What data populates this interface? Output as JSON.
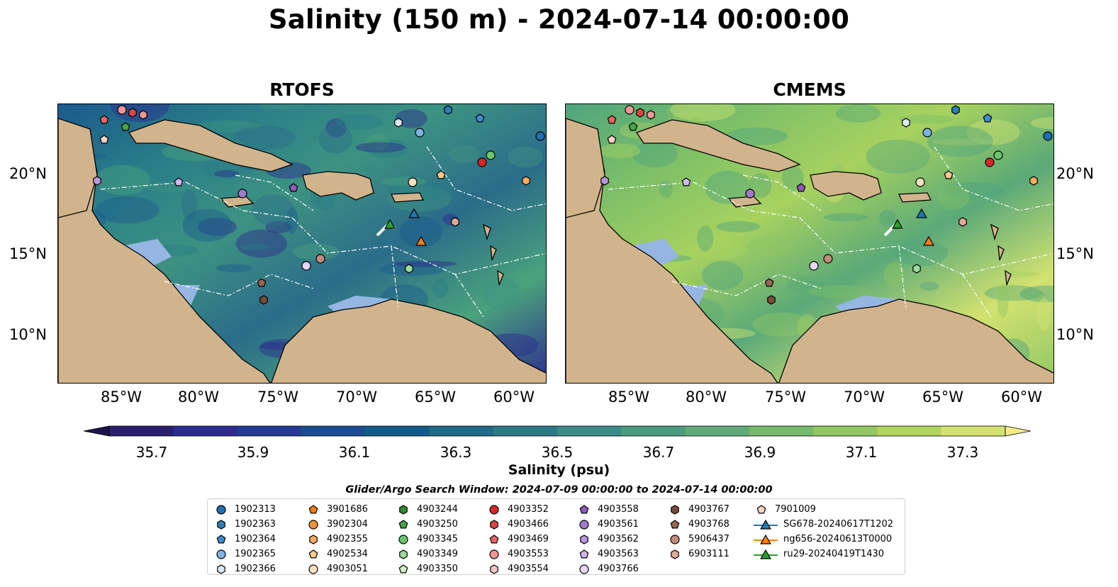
{
  "title": "Salinity (150 m) - 2024-07-14 00:00:00",
  "panels": [
    {
      "name": "RTOFS"
    },
    {
      "name": "CMEMS"
    }
  ],
  "axes": {
    "x_ticks": [
      "85°W",
      "80°W",
      "75°W",
      "70°W",
      "65°W",
      "60°W"
    ],
    "y_ticks": [
      "20°N",
      "15°N",
      "10°N"
    ]
  },
  "colorbar": {
    "labels": [
      "35.7",
      "35.9",
      "36.1",
      "36.3",
      "36.5",
      "36.7",
      "36.9",
      "37.1",
      "37.3"
    ],
    "colors": [
      "#2a1f6e",
      "#2d2a8f",
      "#233b95",
      "#1a4c91",
      "#155b8a",
      "#1f6a86",
      "#2d7a86",
      "#3a8a85",
      "#4c9a80",
      "#5faa78",
      "#76b96c",
      "#92c761",
      "#b0d45d",
      "#d3e270"
    ],
    "title": "Salinity (psu)"
  },
  "search_window": "Glider/Argo Search Window: 2024-07-09 00:00:00 to 2024-07-14 00:00:00",
  "legend": {
    "columns": [
      [
        {
          "label": "1902313",
          "shape": "circle",
          "color": "#1f6eb3"
        },
        {
          "label": "1902363",
          "shape": "hexagon",
          "color": "#2c7fb8"
        },
        {
          "label": "1902364",
          "shape": "pentagon",
          "color": "#3b8fd0"
        },
        {
          "label": "1902365",
          "shape": "circle",
          "color": "#7fb2e3"
        },
        {
          "label": "1902366",
          "shape": "hexagon",
          "color": "#dbe9f7"
        }
      ],
      [
        {
          "label": "3901686",
          "shape": "pentagon",
          "color": "#ef7d1a"
        },
        {
          "label": "3902304",
          "shape": "circle",
          "color": "#f59332"
        },
        {
          "label": "4902355",
          "shape": "hexagon",
          "color": "#f9ad60"
        },
        {
          "label": "4902534",
          "shape": "pentagon",
          "color": "#fcc98f"
        },
        {
          "label": "4903051",
          "shape": "circle",
          "color": "#fde1c0"
        }
      ],
      [
        {
          "label": "4903244",
          "shape": "hexagon",
          "color": "#2e8b2e"
        },
        {
          "label": "4903250",
          "shape": "pentagon",
          "color": "#46a546"
        },
        {
          "label": "4903345",
          "shape": "circle",
          "color": "#6cc46c"
        },
        {
          "label": "4903349",
          "shape": "hexagon",
          "color": "#98dc98"
        },
        {
          "label": "4903350",
          "shape": "pentagon",
          "color": "#cdf1c4"
        }
      ],
      [
        {
          "label": "4903352",
          "shape": "circle",
          "color": "#d62728"
        },
        {
          "label": "4903466",
          "shape": "hexagon",
          "color": "#de4545"
        },
        {
          "label": "4903469",
          "shape": "pentagon",
          "color": "#e86565"
        },
        {
          "label": "4903553",
          "shape": "circle",
          "color": "#f29595"
        },
        {
          "label": "4903554",
          "shape": "hexagon",
          "color": "#f8c6c6"
        }
      ],
      [
        {
          "label": "4903558",
          "shape": "pentagon",
          "color": "#8e59b8"
        },
        {
          "label": "4903561",
          "shape": "circle",
          "color": "#a478cc"
        },
        {
          "label": "4903562",
          "shape": "hexagon",
          "color": "#bb96dd"
        },
        {
          "label": "4903563",
          "shape": "pentagon",
          "color": "#d3b6ec"
        },
        {
          "label": "4903766",
          "shape": "circle",
          "color": "#ead6f7"
        }
      ],
      [
        {
          "label": "4903767",
          "shape": "hexagon",
          "color": "#7b4a3a"
        },
        {
          "label": "4903768",
          "shape": "pentagon",
          "color": "#986555"
        },
        {
          "label": "5906437",
          "shape": "circle",
          "color": "#c28a7a"
        },
        {
          "label": "6903111",
          "shape": "hexagon",
          "color": "#e4aa98"
        }
      ],
      [
        {
          "label": "7901009",
          "shape": "pentagon",
          "color": "#fbd4c6"
        },
        {
          "label": "SG678-20240617T1202",
          "shape": "triangle-line",
          "color": "#1f77b4"
        },
        {
          "label": "ng656-20240613T0000",
          "shape": "triangle-line",
          "color": "#ff7f0e"
        },
        {
          "label": "ru29-20240419T1430",
          "shape": "triangle-line",
          "color": "#2ca02c"
        }
      ]
    ]
  }
}
